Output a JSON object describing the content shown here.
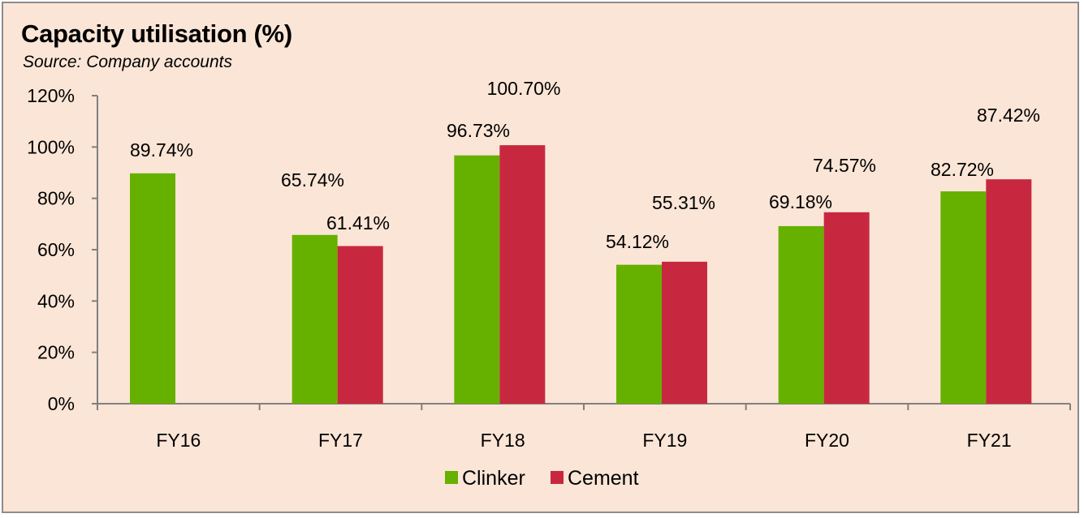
{
  "chart_data": {
    "type": "bar",
    "title": "Capacity utilisation (%)",
    "subtitle": "Source: Company accounts",
    "categories": [
      "FY16",
      "FY17",
      "FY18",
      "FY19",
      "FY20",
      "FY21"
    ],
    "series": [
      {
        "name": "Clinker",
        "color": "#66b000",
        "values": [
          89.74,
          65.74,
          96.73,
          54.12,
          69.18,
          82.72
        ],
        "labels": [
          "89.74%",
          "65.74%",
          "96.73%",
          "54.12%",
          "69.18%",
          "82.72%"
        ]
      },
      {
        "name": "Cement",
        "color": "#c8283f",
        "values": [
          null,
          61.41,
          100.7,
          55.31,
          74.57,
          87.42
        ],
        "labels": [
          "",
          "61.41%",
          "100.70%",
          "55.31%",
          "74.57%",
          "87.42%"
        ]
      }
    ],
    "yticks": [
      "0%",
      "20%",
      "40%",
      "60%",
      "80%",
      "100%",
      "120%"
    ],
    "ylim": [
      0,
      120
    ],
    "grid": false,
    "legend": "bottom-center"
  }
}
